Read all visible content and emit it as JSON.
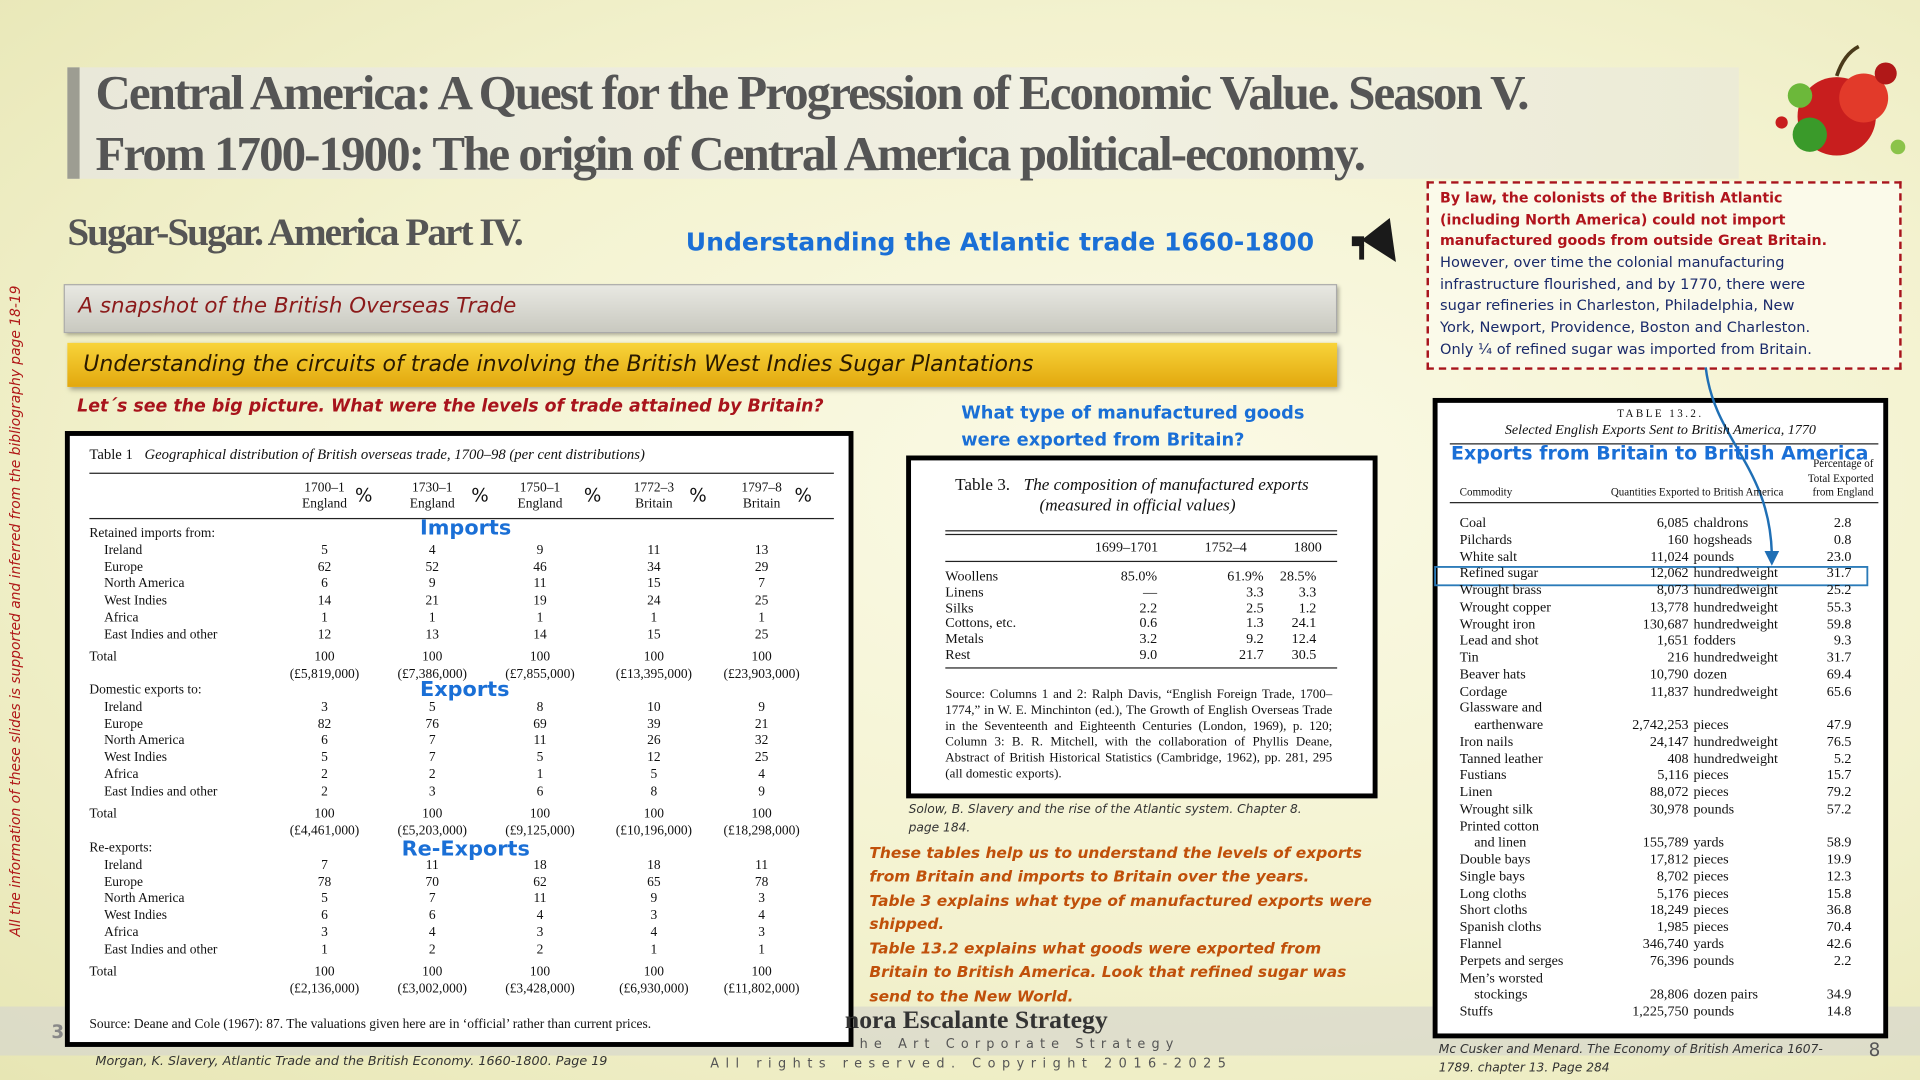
{
  "header": {
    "title_line1": "Central America:  A Quest for the Progression of Economic Value. Season V.",
    "title_line2": "From 1700-1900: The origin of  Central America political-economy.",
    "subtitle": "Sugar-Sugar. America Part IV.",
    "section_heading": "Understanding the Atlantic trade 1660-1800"
  },
  "side_note": "All the information of these slides is supported and inferred from the bibliography page 18-19",
  "banners": [
    "A snapshot of the British Overseas Trade",
    "Understanding the circuits of trade involving the British West Indies Sugar Plantations"
  ],
  "question": "Let´s see the big picture. What were the levels of trade attained by Britain?",
  "callout": {
    "law": [
      "By law, the colonists of the British Atlantic",
      "(including North America) could not import",
      "manufactured goods from outside Great Britain."
    ],
    "history": [
      "However, over time the colonial manufacturing",
      "infrastructure flourished, and by 1770, there were",
      "sugar refineries in Charleston, Philadelphia, New",
      "York, Newport, Providence, Boston and Charleston.",
      "Only ¼ of refined sugar was imported from Britain."
    ]
  },
  "table1": {
    "title_label": "Table 1",
    "title": "Geographical distribution of British overseas trade, 1700–98 (per cent distributions)",
    "columns": [
      [
        "1700–1",
        "England"
      ],
      [
        "1730–1",
        "England"
      ],
      [
        "1750–1",
        "England"
      ],
      [
        "1772–3",
        "Britain"
      ],
      [
        "1797–8",
        "Britain"
      ]
    ],
    "sections": [
      {
        "heading": "Retained imports from:",
        "rows": [
          [
            "Ireland",
            5,
            4,
            9,
            11,
            13
          ],
          [
            "Europe",
            62,
            52,
            46,
            34,
            29
          ],
          [
            "North America",
            6,
            9,
            11,
            15,
            7
          ],
          [
            "West Indies",
            14,
            21,
            19,
            24,
            25
          ],
          [
            "Africa",
            1,
            1,
            1,
            1,
            1
          ],
          [
            "East Indies and other",
            12,
            13,
            14,
            15,
            25
          ]
        ],
        "total": [
          "Total",
          100,
          100,
          100,
          100,
          100
        ],
        "amounts": [
          "(£5,819,000)",
          "(£7,386,000)",
          "(£7,855,000)",
          "(£13,395,000)",
          "(£23,903,000)"
        ]
      },
      {
        "heading": "Domestic exports to:",
        "rows": [
          [
            "Ireland",
            3,
            5,
            8,
            10,
            9
          ],
          [
            "Europe",
            82,
            76,
            69,
            39,
            21
          ],
          [
            "North America",
            6,
            7,
            11,
            26,
            32
          ],
          [
            "West Indies",
            5,
            7,
            5,
            12,
            25
          ],
          [
            "Africa",
            2,
            2,
            1,
            5,
            4
          ],
          [
            "East Indies and other",
            2,
            3,
            6,
            8,
            9
          ]
        ],
        "total": [
          "Total",
          100,
          100,
          100,
          100,
          100
        ],
        "amounts": [
          "(£4,461,000)",
          "(£5,203,000)",
          "(£9,125,000)",
          "(£10,196,000)",
          "(£18,298,000)"
        ]
      },
      {
        "heading": "Re-exports:",
        "rows": [
          [
            "Ireland",
            7,
            11,
            18,
            18,
            11
          ],
          [
            "Europe",
            78,
            70,
            62,
            65,
            78
          ],
          [
            "North America",
            5,
            7,
            11,
            9,
            3
          ],
          [
            "West Indies",
            6,
            6,
            4,
            3,
            4
          ],
          [
            "Africa",
            3,
            4,
            3,
            4,
            3
          ],
          [
            "East Indies and other",
            1,
            2,
            2,
            1,
            1
          ]
        ],
        "total": [
          "Total",
          100,
          100,
          100,
          100,
          100
        ],
        "amounts": [
          "(£2,136,000)",
          "(£3,002,000)",
          "(£3,428,000)",
          "(£6,930,000)",
          "(£11,802,000)"
        ]
      }
    ],
    "source": "Source: Deane and Cole (1967): 87. The valuations given here are in ‘official’ rather than current prices.",
    "overlays": {
      "imports": "Imports",
      "exports": "Exports",
      "reexports": "Re-Exports",
      "percent": "%"
    },
    "caption": "Morgan, K. Slavery, Atlantic Trade and the British Economy. 1660-1800. Page 19"
  },
  "manufactured_question": [
    "What type of manufactured goods",
    "were exported from Britain?"
  ],
  "table3": {
    "title_label": "Table 3.",
    "title_lines": [
      "The composition of manufactured exports",
      "(measured in official values)"
    ],
    "columns": [
      "1699–1701",
      "1752–4",
      "1800"
    ],
    "rows": [
      [
        "Woollens",
        "85.0%",
        "61.9%",
        "28.5%"
      ],
      [
        "Linens",
        "—",
        "3.3",
        "3.3"
      ],
      [
        "Silks",
        "2.2",
        "2.5",
        "1.2"
      ],
      [
        "Cottons, etc.",
        "0.6",
        "1.3",
        "24.1"
      ],
      [
        "Metals",
        "3.2",
        "9.2",
        "12.4"
      ],
      [
        "Rest",
        "9.0",
        "21.7",
        "30.5"
      ]
    ],
    "source": "Source: Columns 1 and 2: Ralph Davis, “English Foreign Trade, 1700–1774,” in W. E. Minchinton (ed.), The Growth of English Overseas Trade in the Seventeenth and Eighteenth Centuries (London, 1969), p. 120; Column 3: B. R. Mitchell, with the collaboration of Phyllis Deane, Abstract of British Historical Statistics (Cambridge, 1962), pp. 281, 295 (all domestic exports).",
    "caption": [
      "Solow, B. Slavery and the rise of the Atlantic system. Chapter 8.",
      "page 184."
    ]
  },
  "explanation": [
    "These tables help us to understand the levels of exports",
    "from Britain and imports to Britain over the years.",
    "Table 3 explains what type of manufactured exports were",
    "shipped.",
    "Table 13.2 explains what goods were exported from",
    "Britain to British America. Look that refined sugar was",
    "send to the New World."
  ],
  "table13": {
    "title_label": "TABLE 13.2.",
    "title": "Selected English Exports Sent to British America, 1770",
    "overlay": "Exports from Britain to British America",
    "headers": {
      "commodity": "Commodity",
      "quantity": "Quantities Exported to British America",
      "percent": [
        "Percentage of",
        "Total Exported",
        "from England"
      ]
    },
    "rows": [
      {
        "commodity": [
          "Coal"
        ],
        "quantity": "6,085",
        "unit": "chaldrons",
        "percent": "2.8"
      },
      {
        "commodity": [
          "Pilchards"
        ],
        "quantity": "160",
        "unit": "hogsheads",
        "percent": "0.8"
      },
      {
        "commodity": [
          "White salt"
        ],
        "quantity": "11,024",
        "unit": "pounds",
        "percent": "23.0"
      },
      {
        "commodity": [
          "Refined sugar"
        ],
        "quantity": "12,062",
        "unit": "hundredweight",
        "percent": "31.7"
      },
      {
        "commodity": [
          "Wrought brass"
        ],
        "quantity": "8,073",
        "unit": "hundredweight",
        "percent": "25.2"
      },
      {
        "commodity": [
          "Wrought copper"
        ],
        "quantity": "13,778",
        "unit": "hundredweight",
        "percent": "55.3"
      },
      {
        "commodity": [
          "Wrought iron"
        ],
        "quantity": "130,687",
        "unit": "hundredweight",
        "percent": "59.8"
      },
      {
        "commodity": [
          "Lead and shot"
        ],
        "quantity": "1,651",
        "unit": "fodders",
        "percent": "9.3"
      },
      {
        "commodity": [
          "Tin"
        ],
        "quantity": "216",
        "unit": "hundredweight",
        "percent": "31.7"
      },
      {
        "commodity": [
          "Beaver hats"
        ],
        "quantity": "10,790",
        "unit": "dozen",
        "percent": "69.4"
      },
      {
        "commodity": [
          "Cordage"
        ],
        "quantity": "11,837",
        "unit": "hundredweight",
        "percent": "65.6"
      },
      {
        "commodity": [
          "Glassware and",
          "earthenware"
        ],
        "quantity": "2,742,253",
        "unit": "pieces",
        "percent": "47.9"
      },
      {
        "commodity": [
          "Iron nails"
        ],
        "quantity": "24,147",
        "unit": "hundredweight",
        "percent": "76.5"
      },
      {
        "commodity": [
          "Tanned leather"
        ],
        "quantity": "408",
        "unit": "hundredweight",
        "percent": "5.2"
      },
      {
        "commodity": [
          "Fustians"
        ],
        "quantity": "5,116",
        "unit": "pieces",
        "percent": "15.7"
      },
      {
        "commodity": [
          "Linen"
        ],
        "quantity": "88,072",
        "unit": "pieces",
        "percent": "79.2"
      },
      {
        "commodity": [
          "Wrought silk"
        ],
        "quantity": "30,978",
        "unit": "pounds",
        "percent": "57.2"
      },
      {
        "commodity": [
          "Printed cotton",
          "and linen"
        ],
        "quantity": "155,789",
        "unit": "yards",
        "percent": "58.9"
      },
      {
        "commodity": [
          "Double bays"
        ],
        "quantity": "17,812",
        "unit": "pieces",
        "percent": "19.9"
      },
      {
        "commodity": [
          "Single bays"
        ],
        "quantity": "8,702",
        "unit": "pieces",
        "percent": "12.3"
      },
      {
        "commodity": [
          "Long cloths"
        ],
        "quantity": "5,176",
        "unit": "pieces",
        "percent": "15.8"
      },
      {
        "commodity": [
          "Short cloths"
        ],
        "quantity": "18,249",
        "unit": "pieces",
        "percent": "36.8"
      },
      {
        "commodity": [
          "Spanish cloths"
        ],
        "quantity": "1,985",
        "unit": "pieces",
        "percent": "70.4"
      },
      {
        "commodity": [
          "Flannel"
        ],
        "quantity": "346,740",
        "unit": "yards",
        "percent": "42.6"
      },
      {
        "commodity": [
          "Perpets and serges"
        ],
        "quantity": "76,396",
        "unit": "pounds",
        "percent": "2.2"
      },
      {
        "commodity": [
          "Men’s worsted",
          "stockings"
        ],
        "quantity": "28,806",
        "unit": "dozen pairs",
        "percent": "34.9"
      },
      {
        "commodity": [
          "Stuffs"
        ],
        "quantity": "1,225,750",
        "unit": "pounds",
        "percent": "14.8"
      }
    ],
    "caption": [
      "Mc Cusker and Menard. The Economy of British America 1607-",
      "1789. chapter 13. Page 284"
    ]
  },
  "footer": {
    "brand": "nora Escalante Strategy",
    "tagline": "he Art Corporate Strategy",
    "copyright": "All rights reserved. Copyright 2016-2025",
    "page_left": "3",
    "page_right": "8"
  }
}
